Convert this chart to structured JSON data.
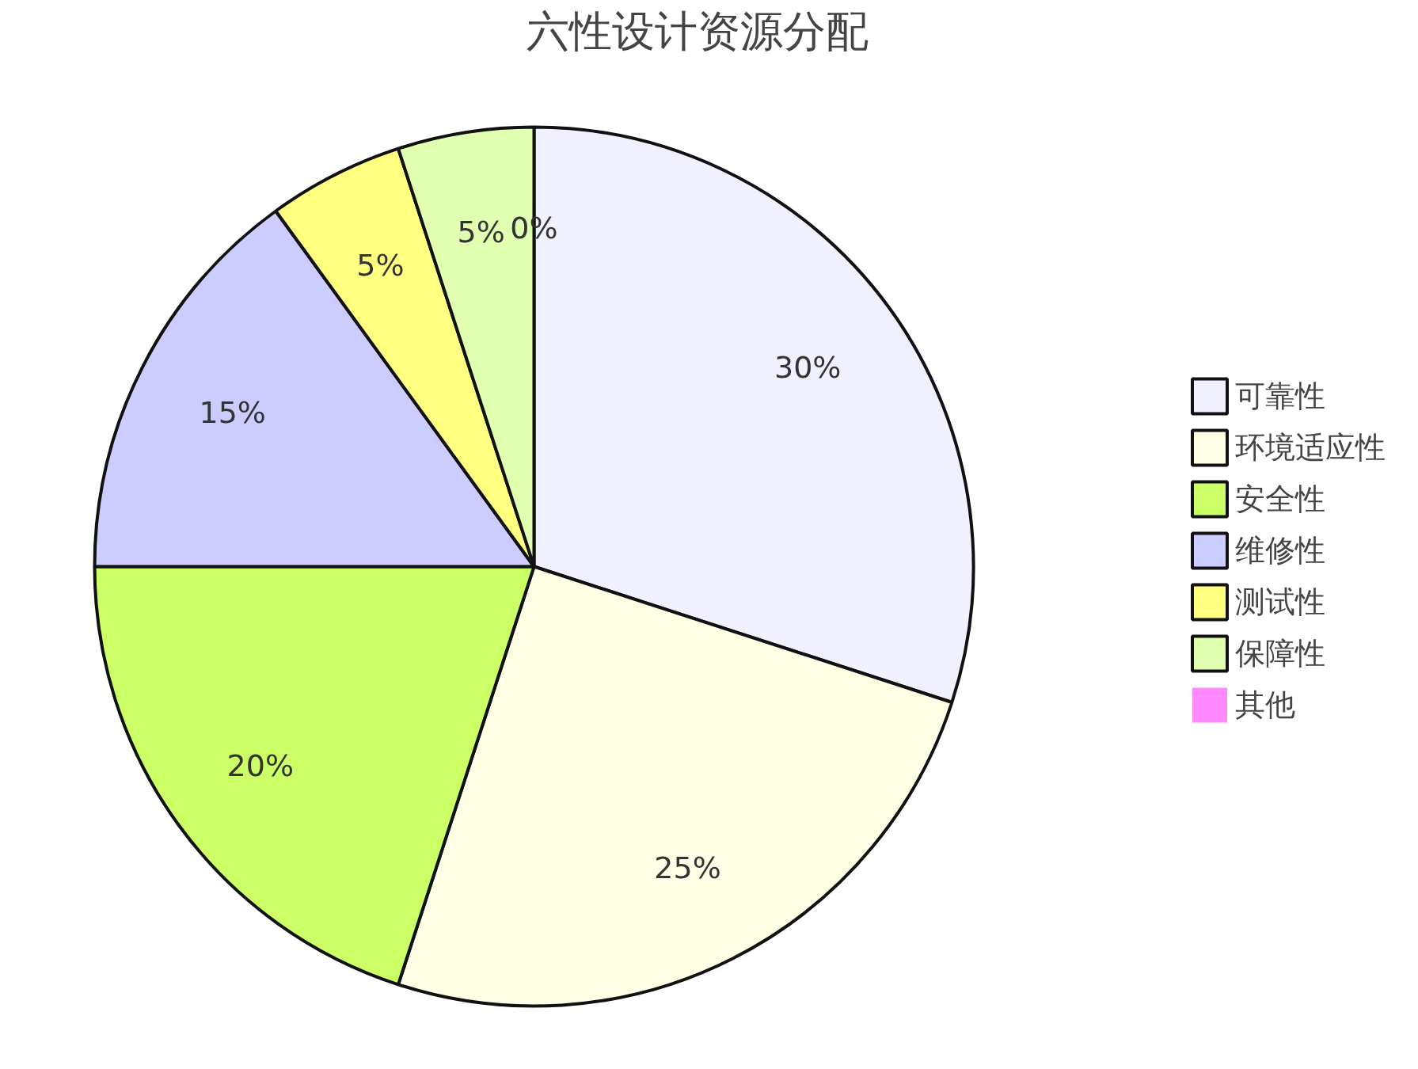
{
  "chart_data": {
    "type": "pie",
    "title": "六性设计资源分配",
    "categories": [
      "可靠性",
      "环境适应性",
      "安全性",
      "维修性",
      "测试性",
      "保障性",
      "其他"
    ],
    "values": [
      30,
      25,
      20,
      15,
      5,
      5,
      0
    ],
    "colors": [
      "#f0f0fe",
      "#ffffe6",
      "#ccff66",
      "#ccccff",
      "#ffff80",
      "#e0ffb0",
      "#ff88ff"
    ],
    "value_labels": [
      "30%",
      "25%",
      "20%",
      "15%",
      "5%",
      "5%",
      "0%"
    ],
    "legend": "right"
  }
}
